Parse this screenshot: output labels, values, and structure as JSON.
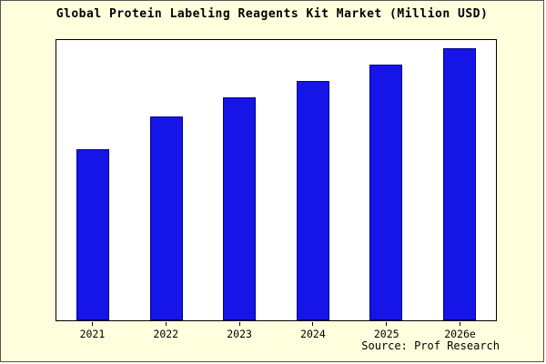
{
  "title": "Global Protein Labeling Reagents Kit Market (Million USD)",
  "source": "Source: Prof Research",
  "colors": {
    "background": "#ffffde",
    "plot_background": "#ffffff",
    "bar_fill": "#1515e8",
    "bar_border": "#00008b",
    "text": "#000000"
  },
  "chart_data": {
    "type": "bar",
    "categories": [
      "2021",
      "2022",
      "2023",
      "2024",
      "2025",
      "2026e"
    ],
    "values": [
      63,
      75,
      82,
      88,
      94,
      100
    ],
    "title": "Global Protein Labeling Reagents Kit Market (Million USD)",
    "xlabel": "",
    "ylabel": "",
    "ylim": [
      0,
      103
    ],
    "grid": false,
    "legend": false,
    "annotation": "Source: Prof Research"
  }
}
